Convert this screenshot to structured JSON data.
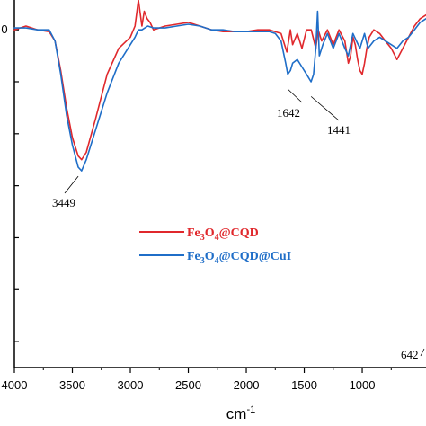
{
  "chart_data": {
    "type": "line",
    "title": "",
    "xlabel": "cm",
    "xlabel_sup": "-1",
    "ylabel": "",
    "xlim": [
      4000,
      450
    ],
    "x_reversed": true,
    "ylim": [
      0,
      100
    ],
    "x_ticks": [
      {
        "value": 4000,
        "label": "4000"
      },
      {
        "value": 3500,
        "label": "3500"
      },
      {
        "value": 3000,
        "label": "3000"
      },
      {
        "value": 2500,
        "label": "2500"
      },
      {
        "value": 2000,
        "label": "2000"
      },
      {
        "value": 1500,
        "label": "1500"
      },
      {
        "value": 1000,
        "label": "1000"
      }
    ],
    "y_tick_values": [
      91,
      77,
      63,
      49,
      35,
      21,
      7
    ],
    "visible_y_tick_label": {
      "value": 91,
      "label": "0"
    },
    "grid": false,
    "legend": "center",
    "annotations": [
      {
        "label": "3449",
        "x": 3449,
        "y": 53
      },
      {
        "label": "1642",
        "x": 1642,
        "y": 76
      },
      {
        "label": "1441",
        "x": 1441,
        "y": 74
      },
      {
        "label": "642",
        "x": 520,
        "y": 5
      }
    ],
    "series": [
      {
        "name": "Fe3O4@CQD",
        "name_parts": [
          "Fe",
          "3",
          "O",
          "4",
          "@CQD"
        ],
        "color": "#e0282c",
        "x": [
          4000,
          3900,
          3800,
          3700,
          3650,
          3600,
          3550,
          3500,
          3450,
          3420,
          3380,
          3300,
          3200,
          3100,
          3000,
          2960,
          2930,
          2900,
          2880,
          2855,
          2830,
          2800,
          2700,
          2600,
          2500,
          2400,
          2300,
          2200,
          2100,
          2000,
          1900,
          1800,
          1700,
          1650,
          1620,
          1600,
          1560,
          1520,
          1480,
          1440,
          1400,
          1380,
          1350,
          1300,
          1250,
          1200,
          1150,
          1120,
          1100,
          1080,
          1060,
          1040,
          1020,
          1000,
          980,
          960,
          940,
          900,
          850,
          800,
          750,
          700,
          650,
          600,
          550,
          500,
          450
        ],
        "y": [
          91,
          92,
          91,
          90.5,
          88,
          80,
          70,
          62,
          57,
          56,
          58,
          67,
          79,
          86,
          89,
          92,
          99,
          92,
          96,
          94,
          93,
          91,
          92,
          92.5,
          93,
          92,
          91,
          90.5,
          90.5,
          90.5,
          91,
          91,
          90,
          85,
          91,
          87,
          90,
          86,
          91,
          91,
          86,
          91,
          88,
          91,
          87,
          91,
          88,
          82,
          84,
          89,
          87,
          83,
          80,
          79,
          82,
          86,
          89,
          91,
          90,
          88,
          86,
          83,
          86,
          89,
          92,
          94,
          95
        ]
      },
      {
        "name": "Fe3O4@CQD@CuI",
        "name_parts": [
          "Fe",
          "3",
          "O",
          "4",
          "@CQD@CuI"
        ],
        "color": "#1f6ec8",
        "x": [
          4000,
          3900,
          3800,
          3700,
          3650,
          3600,
          3550,
          3500,
          3450,
          3420,
          3380,
          3300,
          3200,
          3100,
          3000,
          2960,
          2930,
          2900,
          2850,
          2800,
          2700,
          2600,
          2500,
          2400,
          2300,
          2200,
          2100,
          2000,
          1900,
          1800,
          1750,
          1700,
          1660,
          1642,
          1620,
          1600,
          1560,
          1520,
          1480,
          1441,
          1420,
          1400,
          1385,
          1370,
          1340,
          1300,
          1250,
          1200,
          1150,
          1120,
          1100,
          1080,
          1050,
          1020,
          1000,
          980,
          950,
          900,
          850,
          800,
          750,
          700,
          650,
          600,
          550,
          500,
          450
        ],
        "y": [
          91.5,
          91.5,
          91,
          91,
          88,
          79,
          68,
          60,
          54,
          53,
          56,
          64,
          74,
          82,
          87,
          89,
          91,
          91,
          92,
          91.5,
          91.5,
          92,
          92.5,
          92,
          91,
          91,
          90.5,
          90.5,
          90.5,
          90.5,
          90,
          88,
          82,
          79,
          80,
          82,
          83,
          81,
          79,
          77,
          79,
          86,
          96,
          84,
          87,
          90,
          86,
          90,
          86,
          84,
          87,
          90,
          88,
          86,
          88,
          90,
          86,
          88,
          89,
          88,
          87,
          86,
          88,
          89,
          91,
          93,
          94
        ]
      }
    ]
  }
}
